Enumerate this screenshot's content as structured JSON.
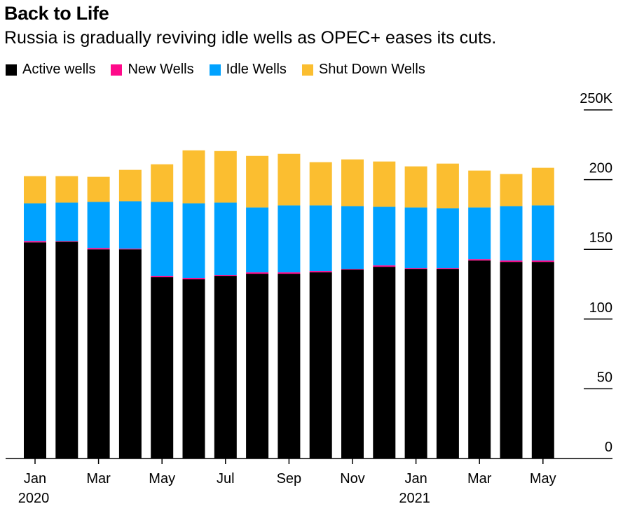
{
  "title": "Back to Life",
  "subtitle": "Russia is gradually reviving idle wells as OPEC+ eases its cuts.",
  "legend": [
    {
      "name": "Active wells",
      "color": "#000000"
    },
    {
      "name": "New Wells",
      "color": "#ff0a8a"
    },
    {
      "name": "Idle Wells",
      "color": "#00a2ff"
    },
    {
      "name": "Shut Down Wells",
      "color": "#fbbe30"
    }
  ],
  "chart_data": {
    "type": "bar",
    "stacked": true,
    "y_axis_position": "right",
    "ylim": [
      0,
      250000
    ],
    "yticks": [
      "0",
      "50",
      "100",
      "150",
      "200",
      "250K"
    ],
    "ytick_values": [
      0,
      50000,
      100000,
      150000,
      200000,
      250000
    ],
    "categories": [
      "Jan 2020",
      "Feb 2020",
      "Mar 2020",
      "Apr 2020",
      "May 2020",
      "Jun 2020",
      "Jul 2020",
      "Aug 2020",
      "Sep 2020",
      "Oct 2020",
      "Nov 2020",
      "Dec 2020",
      "Jan 2021",
      "Feb 2021",
      "Mar 2021",
      "Apr 2021",
      "May 2021"
    ],
    "xtick_labels": [
      {
        "index": 0,
        "line1": "Jan",
        "line2": "2020"
      },
      {
        "index": 2,
        "line1": "Mar",
        "line2": ""
      },
      {
        "index": 4,
        "line1": "May",
        "line2": ""
      },
      {
        "index": 6,
        "line1": "Jul",
        "line2": ""
      },
      {
        "index": 8,
        "line1": "Sep",
        "line2": ""
      },
      {
        "index": 10,
        "line1": "Nov",
        "line2": ""
      },
      {
        "index": 12,
        "line1": "Jan",
        "line2": "2021"
      },
      {
        "index": 14,
        "line1": "Mar",
        "line2": ""
      },
      {
        "index": 16,
        "line1": "May",
        "line2": ""
      }
    ],
    "series": [
      {
        "name": "Active wells",
        "color": "#000000",
        "values": [
          155000,
          155500,
          150000,
          150000,
          130000,
          128500,
          131000,
          132500,
          132500,
          133500,
          135500,
          137500,
          136000,
          136000,
          142000,
          141000,
          141000
        ]
      },
      {
        "name": "New Wells",
        "color": "#ff0a8a",
        "values": [
          1000,
          500,
          1000,
          500,
          1000,
          1000,
          500,
          1000,
          1000,
          1000,
          500,
          1000,
          500,
          500,
          1000,
          1000,
          1000
        ]
      },
      {
        "name": "Idle Wells",
        "color": "#00a2ff",
        "values": [
          27000,
          27500,
          33000,
          34000,
          53000,
          53500,
          52000,
          46500,
          48000,
          47000,
          45000,
          42000,
          43500,
          43000,
          37000,
          39000,
          39500
        ]
      },
      {
        "name": "Shut Down Wells",
        "color": "#fbbe30",
        "values": [
          19500,
          19000,
          18000,
          22500,
          27000,
          38000,
          37000,
          37000,
          37000,
          31000,
          33500,
          32500,
          29500,
          32000,
          26500,
          23000,
          27000
        ]
      }
    ]
  }
}
